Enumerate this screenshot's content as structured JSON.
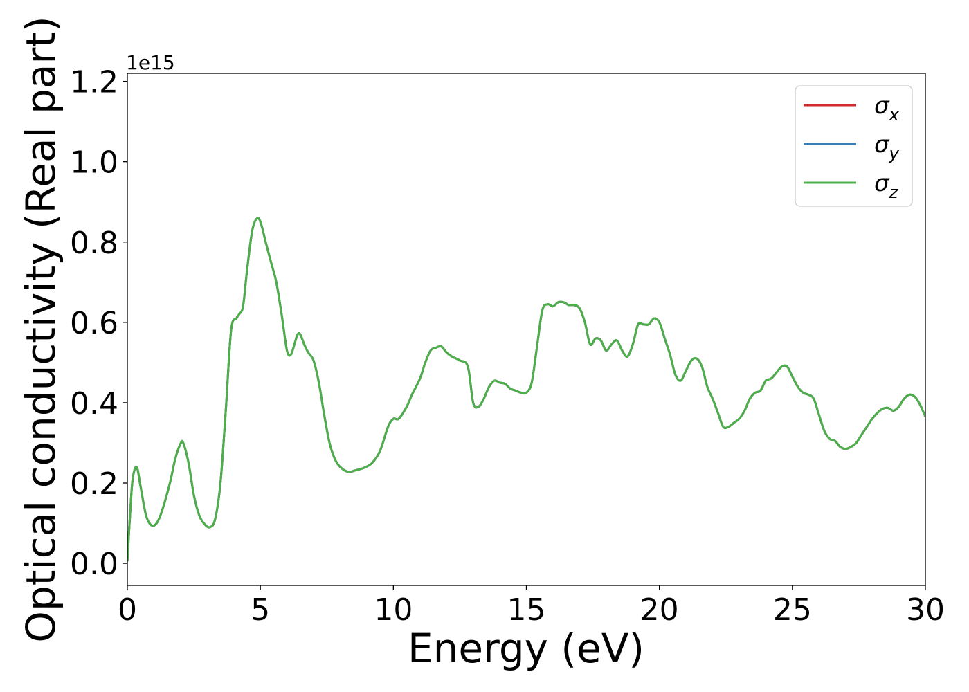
{
  "chart_data": {
    "type": "line",
    "title": "",
    "xlabel": "Energy (eV)",
    "ylabel": "Optical conductivity (Real part)",
    "offset_text": "1e15",
    "xlim": [
      0,
      30
    ],
    "ylim": [
      -0.055,
      1.22
    ],
    "y_scale_exponent": 15,
    "grid": false,
    "legend_position": "top-right",
    "x_ticks": [
      0,
      5,
      10,
      15,
      20,
      25,
      30
    ],
    "x_tick_labels": [
      "0",
      "5",
      "10",
      "15",
      "20",
      "25",
      "30"
    ],
    "y_ticks": [
      0.0,
      0.2,
      0.4,
      0.6,
      0.8,
      1.0,
      1.2
    ],
    "y_tick_labels": [
      "0.0",
      "0.2",
      "0.4",
      "0.6",
      "0.8",
      "1.0",
      "1.2"
    ],
    "x": [
      0,
      0.1,
      0.2,
      0.35,
      0.5,
      0.7,
      0.9,
      1.1,
      1.3,
      1.6,
      1.8,
      2.0,
      2.1,
      2.3,
      2.5,
      2.7,
      2.9,
      3.1,
      3.3,
      3.5,
      3.7,
      3.9,
      4.1,
      4.2,
      4.35,
      4.5,
      4.7,
      4.9,
      5.05,
      5.2,
      5.4,
      5.6,
      5.8,
      6.0,
      6.15,
      6.3,
      6.4,
      6.5,
      6.65,
      6.8,
      7.0,
      7.2,
      7.4,
      7.6,
      7.8,
      8.0,
      8.3,
      8.6,
      8.9,
      9.2,
      9.5,
      9.8,
      10.0,
      10.2,
      10.5,
      10.7,
      11.0,
      11.2,
      11.4,
      11.6,
      11.8,
      12.0,
      12.2,
      12.5,
      12.8,
      13.0,
      13.2,
      13.4,
      13.6,
      13.8,
      14.0,
      14.2,
      14.4,
      14.6,
      14.8,
      15.0,
      15.2,
      15.4,
      15.6,
      15.8,
      16.0,
      16.2,
      16.4,
      16.6,
      16.8,
      17.0,
      17.2,
      17.4,
      17.6,
      17.8,
      18.0,
      18.2,
      18.4,
      18.6,
      18.8,
      19.0,
      19.2,
      19.4,
      19.6,
      19.8,
      20.0,
      20.2,
      20.4,
      20.6,
      20.8,
      21.0,
      21.2,
      21.4,
      21.6,
      21.8,
      22.0,
      22.2,
      22.4,
      22.6,
      22.8,
      23.0,
      23.2,
      23.4,
      23.6,
      23.8,
      24.0,
      24.2,
      24.4,
      24.6,
      24.8,
      25.0,
      25.2,
      25.4,
      25.6,
      25.8,
      26.0,
      26.2,
      26.4,
      26.6,
      26.8,
      27.0,
      27.2,
      27.4,
      27.6,
      27.8,
      28.0,
      28.2,
      28.4,
      28.6,
      28.8,
      29.0,
      29.2,
      29.4,
      29.6,
      29.8,
      30.0
    ],
    "series": [
      {
        "name": "σx",
        "color": "#d62728",
        "values": [
          0.005,
          0.12,
          0.21,
          0.24,
          0.19,
          0.12,
          0.095,
          0.1,
          0.13,
          0.2,
          0.26,
          0.298,
          0.3,
          0.25,
          0.17,
          0.12,
          0.098,
          0.09,
          0.11,
          0.2,
          0.38,
          0.58,
          0.61,
          0.62,
          0.64,
          0.73,
          0.83,
          0.86,
          0.84,
          0.8,
          0.75,
          0.7,
          0.62,
          0.53,
          0.52,
          0.55,
          0.57,
          0.57,
          0.545,
          0.525,
          0.505,
          0.45,
          0.37,
          0.3,
          0.26,
          0.24,
          0.228,
          0.232,
          0.238,
          0.25,
          0.28,
          0.34,
          0.36,
          0.36,
          0.39,
          0.42,
          0.46,
          0.5,
          0.53,
          0.537,
          0.54,
          0.525,
          0.515,
          0.505,
          0.49,
          0.4,
          0.39,
          0.41,
          0.44,
          0.455,
          0.45,
          0.447,
          0.435,
          0.43,
          0.425,
          0.425,
          0.45,
          0.54,
          0.63,
          0.645,
          0.64,
          0.65,
          0.65,
          0.643,
          0.643,
          0.635,
          0.6,
          0.545,
          0.56,
          0.555,
          0.53,
          0.545,
          0.555,
          0.53,
          0.515,
          0.545,
          0.595,
          0.595,
          0.595,
          0.61,
          0.6,
          0.56,
          0.52,
          0.47,
          0.455,
          0.48,
          0.505,
          0.51,
          0.49,
          0.44,
          0.41,
          0.375,
          0.34,
          0.34,
          0.35,
          0.36,
          0.38,
          0.41,
          0.425,
          0.43,
          0.455,
          0.46,
          0.475,
          0.49,
          0.49,
          0.465,
          0.44,
          0.425,
          0.42,
          0.41,
          0.37,
          0.33,
          0.31,
          0.305,
          0.29,
          0.285,
          0.29,
          0.3,
          0.32,
          0.34,
          0.36,
          0.375,
          0.385,
          0.387,
          0.38,
          0.39,
          0.41,
          0.42,
          0.415,
          0.395,
          0.365
        ]
      },
      {
        "name": "σy",
        "color": "#377eb8",
        "values": [
          0.005,
          0.12,
          0.21,
          0.24,
          0.19,
          0.12,
          0.095,
          0.1,
          0.13,
          0.2,
          0.26,
          0.298,
          0.3,
          0.25,
          0.17,
          0.12,
          0.098,
          0.09,
          0.11,
          0.2,
          0.38,
          0.58,
          0.61,
          0.62,
          0.64,
          0.73,
          0.83,
          0.86,
          0.84,
          0.8,
          0.75,
          0.7,
          0.62,
          0.53,
          0.52,
          0.55,
          0.57,
          0.57,
          0.545,
          0.525,
          0.505,
          0.45,
          0.37,
          0.3,
          0.26,
          0.24,
          0.228,
          0.232,
          0.238,
          0.25,
          0.28,
          0.34,
          0.36,
          0.36,
          0.39,
          0.42,
          0.46,
          0.5,
          0.53,
          0.537,
          0.54,
          0.525,
          0.515,
          0.505,
          0.49,
          0.4,
          0.39,
          0.41,
          0.44,
          0.455,
          0.45,
          0.447,
          0.435,
          0.43,
          0.425,
          0.425,
          0.45,
          0.54,
          0.63,
          0.645,
          0.64,
          0.65,
          0.65,
          0.643,
          0.643,
          0.635,
          0.6,
          0.545,
          0.56,
          0.555,
          0.53,
          0.545,
          0.555,
          0.53,
          0.515,
          0.545,
          0.595,
          0.595,
          0.595,
          0.61,
          0.6,
          0.56,
          0.52,
          0.47,
          0.455,
          0.48,
          0.505,
          0.51,
          0.49,
          0.44,
          0.41,
          0.375,
          0.34,
          0.34,
          0.35,
          0.36,
          0.38,
          0.41,
          0.425,
          0.43,
          0.455,
          0.46,
          0.475,
          0.49,
          0.49,
          0.465,
          0.44,
          0.425,
          0.42,
          0.41,
          0.37,
          0.33,
          0.31,
          0.305,
          0.29,
          0.285,
          0.29,
          0.3,
          0.32,
          0.34,
          0.36,
          0.375,
          0.385,
          0.387,
          0.38,
          0.39,
          0.41,
          0.42,
          0.415,
          0.395,
          0.365
        ]
      },
      {
        "name": "σz",
        "color": "#4daf4a",
        "values": [
          0.005,
          0.12,
          0.21,
          0.24,
          0.19,
          0.12,
          0.095,
          0.1,
          0.13,
          0.2,
          0.26,
          0.298,
          0.3,
          0.25,
          0.17,
          0.12,
          0.098,
          0.09,
          0.11,
          0.2,
          0.38,
          0.58,
          0.61,
          0.62,
          0.64,
          0.73,
          0.83,
          0.86,
          0.84,
          0.8,
          0.75,
          0.7,
          0.62,
          0.53,
          0.52,
          0.55,
          0.57,
          0.57,
          0.545,
          0.525,
          0.505,
          0.45,
          0.37,
          0.3,
          0.26,
          0.24,
          0.228,
          0.232,
          0.238,
          0.25,
          0.28,
          0.34,
          0.36,
          0.36,
          0.39,
          0.42,
          0.46,
          0.5,
          0.53,
          0.537,
          0.54,
          0.525,
          0.515,
          0.505,
          0.49,
          0.4,
          0.39,
          0.41,
          0.44,
          0.455,
          0.45,
          0.447,
          0.435,
          0.43,
          0.425,
          0.425,
          0.45,
          0.54,
          0.63,
          0.645,
          0.64,
          0.65,
          0.65,
          0.643,
          0.643,
          0.635,
          0.6,
          0.545,
          0.56,
          0.555,
          0.53,
          0.545,
          0.555,
          0.53,
          0.515,
          0.545,
          0.595,
          0.595,
          0.595,
          0.61,
          0.6,
          0.56,
          0.52,
          0.47,
          0.455,
          0.48,
          0.505,
          0.51,
          0.49,
          0.44,
          0.41,
          0.375,
          0.34,
          0.34,
          0.35,
          0.36,
          0.38,
          0.41,
          0.425,
          0.43,
          0.455,
          0.46,
          0.475,
          0.49,
          0.49,
          0.465,
          0.44,
          0.425,
          0.42,
          0.41,
          0.37,
          0.33,
          0.31,
          0.305,
          0.29,
          0.285,
          0.29,
          0.3,
          0.32,
          0.34,
          0.36,
          0.375,
          0.385,
          0.387,
          0.38,
          0.39,
          0.41,
          0.42,
          0.415,
          0.395,
          0.365
        ]
      }
    ],
    "legend": [
      {
        "symbol": "σ",
        "sub": "x",
        "color": "#d62728"
      },
      {
        "symbol": "σ",
        "sub": "y",
        "color": "#377eb8"
      },
      {
        "symbol": "σ",
        "sub": "z",
        "color": "#4daf4a"
      }
    ]
  }
}
